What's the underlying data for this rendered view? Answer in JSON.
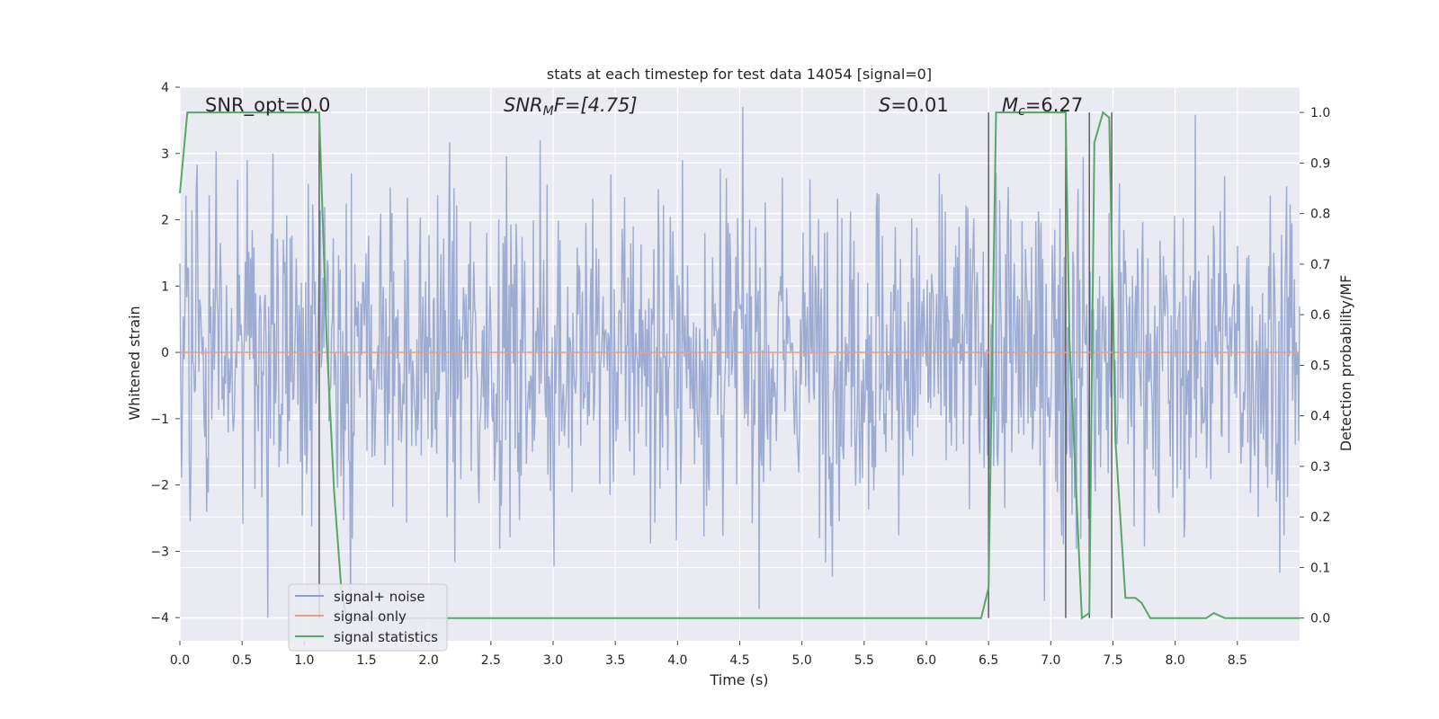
{
  "chart_data": {
    "type": "line",
    "title": "stats at each timestep for test data 14054 [signal=0]",
    "xlabel": "Time (s)",
    "ylabel": "Whitened strain",
    "ylabel_right": "Detection probability/MF",
    "xlim": [
      0.0,
      9.0
    ],
    "ylim": [
      -4.35,
      4.0
    ],
    "ylim_right": [
      -0.045,
      1.05
    ],
    "x_ticks": [
      "0.0",
      "0.5",
      "1.0",
      "1.5",
      "2.0",
      "2.5",
      "3.0",
      "3.5",
      "4.0",
      "4.5",
      "5.0",
      "5.5",
      "6.0",
      "6.5",
      "7.0",
      "7.5",
      "8.0",
      "8.5"
    ],
    "y_ticks": [
      "4",
      "3",
      "2",
      "1",
      "0",
      "−1",
      "−2",
      "−3",
      "−4"
    ],
    "y_right_ticks": [
      "1.0",
      "0.9",
      "0.8",
      "0.7",
      "0.6",
      "0.5",
      "0.4",
      "0.3",
      "0.2",
      "0.1",
      "0.0"
    ],
    "grid": true,
    "legend_position": "lower-left",
    "annotations": {
      "snr_opt": "SNR_opt=0.0",
      "snr_mf_main": "SNR",
      "snr_mf_sub": "M",
      "snr_mf_rest": "F=[4.75]",
      "s_main": "S",
      "s_rest": "=0.01",
      "mc_main": "M",
      "mc_sub": "c",
      "mc_rest": "=6.27"
    },
    "vertical_lines_x": [
      1.12,
      6.5,
      7.12,
      7.31,
      7.49
    ],
    "series": [
      {
        "name": "signal+ noise",
        "color": "#8da0cb",
        "axis": "left",
        "noise_envelope": {
          "typical_amplitude": 2.0,
          "peak_max": 3.7,
          "peak_min": -4.0
        }
      },
      {
        "name": "signal only",
        "color": "#e5a088",
        "axis": "left",
        "x": [
          0.0,
          9.0
        ],
        "y": [
          0.0,
          0.0
        ]
      },
      {
        "name": "signal statistics",
        "color": "#55a868",
        "axis": "right",
        "x": [
          0.0,
          0.06,
          0.1,
          0.2,
          0.5,
          1.0,
          1.12,
          1.18,
          1.24,
          1.3,
          1.34,
          6.44,
          6.5,
          6.56,
          7.0,
          7.12,
          7.15,
          7.25,
          7.31,
          7.35,
          7.42,
          7.47,
          7.52,
          7.6,
          7.68,
          7.73,
          7.8,
          8.25,
          8.31,
          8.4,
          9.0
        ],
        "y": [
          0.84,
          1.0,
          1.0,
          1.0,
          1.0,
          1.0,
          1.0,
          0.55,
          0.25,
          0.05,
          0.0,
          0.0,
          0.06,
          1.0,
          1.0,
          1.0,
          0.55,
          0.0,
          0.01,
          0.94,
          1.0,
          0.99,
          0.35,
          0.04,
          0.04,
          0.03,
          0.0,
          0.0,
          0.01,
          0.0,
          0.0
        ]
      }
    ]
  }
}
